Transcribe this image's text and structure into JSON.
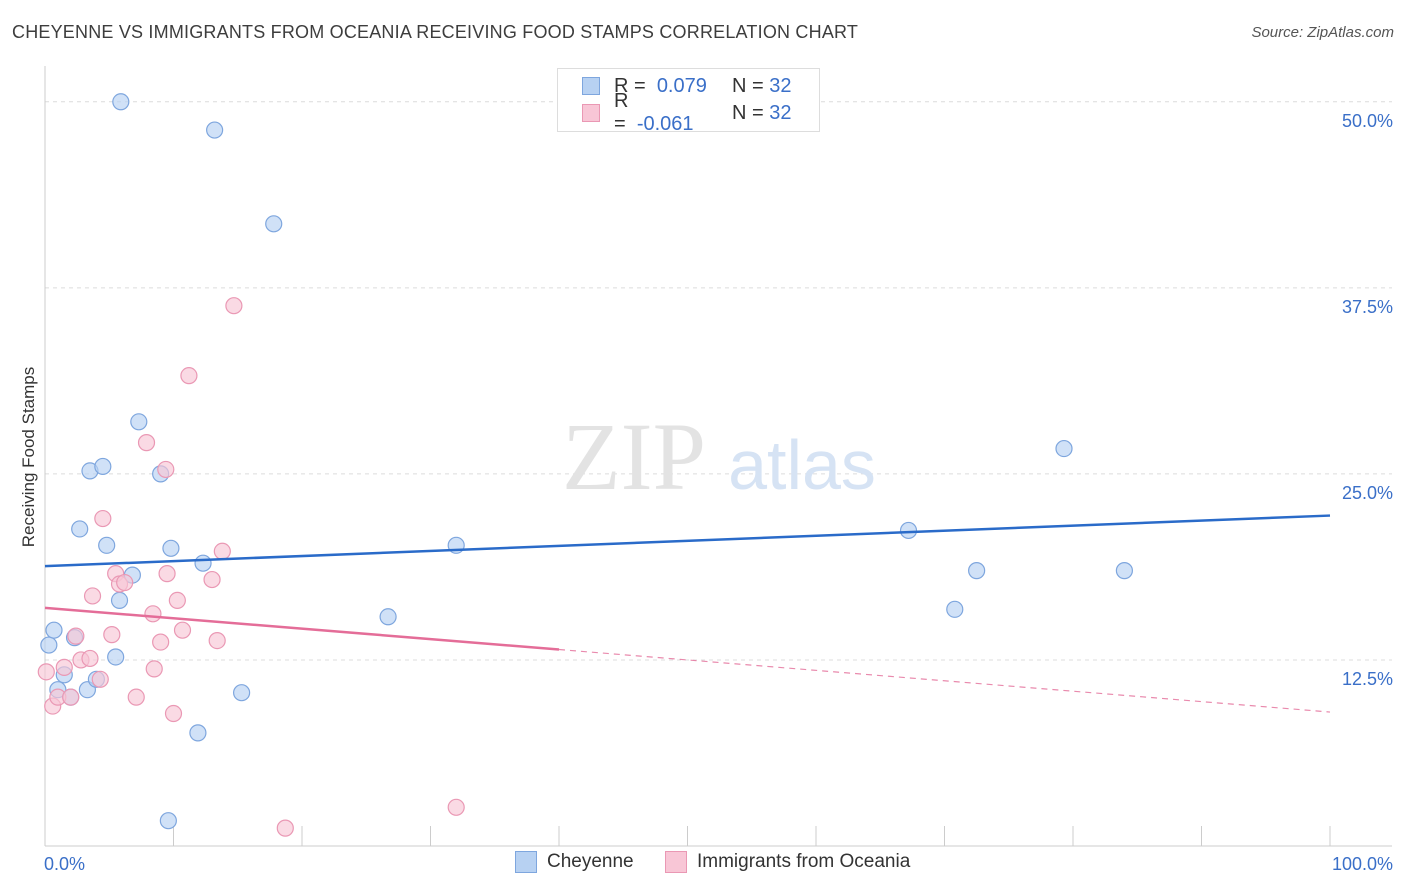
{
  "header": {
    "title": "CHEYENNE VS IMMIGRANTS FROM OCEANIA RECEIVING FOOD STAMPS CORRELATION CHART",
    "source": "Source: ZipAtlas.com"
  },
  "watermark": {
    "zip": "ZIP",
    "atlas": "atlas"
  },
  "legend_top": [
    {
      "r_label": "R =",
      "r_value": "0.079",
      "n_label": "N =",
      "n_value": "32"
    },
    {
      "r_label": "R =",
      "r_value": "-0.061",
      "n_label": "N =",
      "n_value": "32"
    }
  ],
  "colors": {
    "blue_fill": "#b7d1f2",
    "blue_stroke": "#7ea6de",
    "blue_line": "#2a6bc9",
    "pink_fill": "#f8c6d6",
    "pink_stroke": "#ea98b4",
    "pink_line": "#e46d98",
    "grid": "#dcdcdc",
    "tick_label": "#3a6fc8"
  },
  "chart_data": {
    "type": "scatter",
    "title": "CHEYENNE VS IMMIGRANTS FROM OCEANIA RECEIVING FOOD STAMPS CORRELATION CHART",
    "xlabel": "",
    "ylabel": "Receiving Food Stamps",
    "xlim": [
      0,
      100
    ],
    "ylim": [
      0,
      52
    ],
    "x_tick_labels": [
      "0.0%",
      "100.0%"
    ],
    "y_ticks": [
      12.5,
      25.0,
      37.5,
      50.0
    ],
    "y_tick_labels": [
      "12.5%",
      "25.0%",
      "37.5%",
      "50.0%"
    ],
    "grid": true,
    "legend_position": "bottom",
    "series": [
      {
        "name": "Cheyenne",
        "color": "#b7d1f2",
        "r": 0.079,
        "n": 32,
        "points": [
          [
            0.3,
            13.5
          ],
          [
            0.7,
            14.5
          ],
          [
            1.0,
            10.5
          ],
          [
            1.5,
            11.5
          ],
          [
            2.0,
            10.0
          ],
          [
            2.3,
            14.0
          ],
          [
            2.7,
            21.3
          ],
          [
            3.3,
            10.5
          ],
          [
            3.5,
            25.2
          ],
          [
            4.0,
            11.2
          ],
          [
            4.5,
            25.5
          ],
          [
            4.8,
            20.2
          ],
          [
            5.5,
            12.7
          ],
          [
            5.8,
            16.5
          ],
          [
            5.9,
            50.0
          ],
          [
            6.8,
            18.2
          ],
          [
            7.3,
            28.5
          ],
          [
            9.0,
            25.0
          ],
          [
            9.6,
            1.7
          ],
          [
            9.8,
            20.0
          ],
          [
            11.9,
            7.6
          ],
          [
            12.3,
            19.0
          ],
          [
            13.2,
            48.1
          ],
          [
            15.3,
            10.3
          ],
          [
            17.8,
            41.8
          ],
          [
            26.7,
            15.4
          ],
          [
            32.0,
            20.2
          ],
          [
            67.2,
            21.2
          ],
          [
            70.8,
            15.9
          ],
          [
            72.5,
            18.5
          ],
          [
            79.3,
            26.7
          ],
          [
            84.0,
            18.5
          ]
        ],
        "trend": {
          "x": [
            0,
            100
          ],
          "y": [
            18.8,
            22.2
          ]
        }
      },
      {
        "name": "Immigrants from Oceania",
        "color": "#f8c6d6",
        "r": -0.061,
        "n": 32,
        "points": [
          [
            0.1,
            11.7
          ],
          [
            0.6,
            9.4
          ],
          [
            1.0,
            10.0
          ],
          [
            1.5,
            12.0
          ],
          [
            2.0,
            10.0
          ],
          [
            2.4,
            14.1
          ],
          [
            2.8,
            12.5
          ],
          [
            3.5,
            12.6
          ],
          [
            3.7,
            16.8
          ],
          [
            4.3,
            11.2
          ],
          [
            4.5,
            22.0
          ],
          [
            5.2,
            14.2
          ],
          [
            5.5,
            18.3
          ],
          [
            5.8,
            17.6
          ],
          [
            6.2,
            17.7
          ],
          [
            7.1,
            10.0
          ],
          [
            7.9,
            27.1
          ],
          [
            8.4,
            15.6
          ],
          [
            8.5,
            11.9
          ],
          [
            9.0,
            13.7
          ],
          [
            9.4,
            25.3
          ],
          [
            9.5,
            18.3
          ],
          [
            10.0,
            8.9
          ],
          [
            10.3,
            16.5
          ],
          [
            10.7,
            14.5
          ],
          [
            11.2,
            31.6
          ],
          [
            13.0,
            17.9
          ],
          [
            13.4,
            13.8
          ],
          [
            13.8,
            19.8
          ],
          [
            14.7,
            36.3
          ],
          [
            18.7,
            1.2
          ],
          [
            32.0,
            2.6
          ]
        ],
        "trend": {
          "x": [
            0,
            40
          ],
          "y": [
            16.0,
            13.2
          ]
        },
        "trend_extension": {
          "x": [
            40,
            100
          ],
          "y": [
            13.2,
            9.0
          ]
        }
      }
    ]
  }
}
